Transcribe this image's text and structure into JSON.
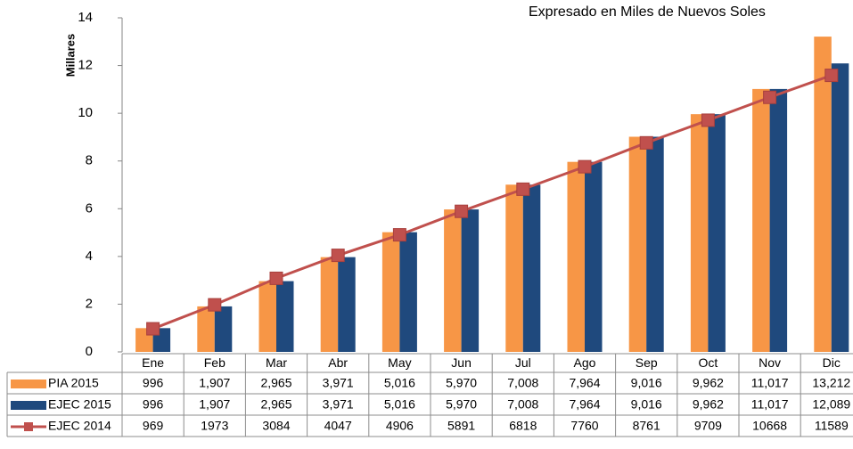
{
  "chart_data": {
    "type": "bar",
    "title": "Expresado en Miles de Nuevos Soles",
    "y_label": "Millares",
    "categories": [
      "Ene",
      "Feb",
      "Mar",
      "Abr",
      "May",
      "Jun",
      "Jul",
      "Ago",
      "Sep",
      "Oct",
      "Nov",
      "Dic"
    ],
    "series": [
      {
        "name": "PIA 2015",
        "type": "bar",
        "color": "#f79646",
        "values": [
          996,
          1907,
          2965,
          3971,
          5016,
          5970,
          7008,
          7964,
          9016,
          9962,
          11017,
          13212
        ],
        "value_labels": [
          "996",
          "1,907",
          "2,965",
          "3,971",
          "5,016",
          "5,970",
          "7,008",
          "7,964",
          "9,016",
          "9,962",
          "11,017",
          "13,212"
        ]
      },
      {
        "name": "EJEC 2015",
        "type": "bar",
        "color": "#1f497d",
        "values": [
          996,
          1907,
          2965,
          3971,
          5016,
          5970,
          7008,
          7964,
          9016,
          9962,
          11017,
          12089
        ],
        "value_labels": [
          "996",
          "1,907",
          "2,965",
          "3,971",
          "5,016",
          "5,970",
          "7,008",
          "7,964",
          "9,016",
          "9,962",
          "11,017",
          "12,089"
        ]
      },
      {
        "name": "EJEC 2014",
        "type": "line",
        "color": "#c0504d",
        "values": [
          969,
          1973,
          3084,
          4047,
          4906,
          5891,
          6818,
          7760,
          8761,
          9709,
          10668,
          11589
        ]
      }
    ],
    "ylim": [
      0,
      14000
    ],
    "yticks": [
      0,
      {
        "value": 2000,
        "label": "2"
      },
      {
        "value": 4000,
        "label": "4"
      },
      {
        "value": 6000,
        "label": "6"
      },
      {
        "value": 8000,
        "label": "8"
      },
      {
        "value": 10000,
        "label": "10"
      },
      {
        "value": 12000,
        "label": "12"
      },
      {
        "value": 14000,
        "label": "14"
      }
    ],
    "grid": false
  }
}
